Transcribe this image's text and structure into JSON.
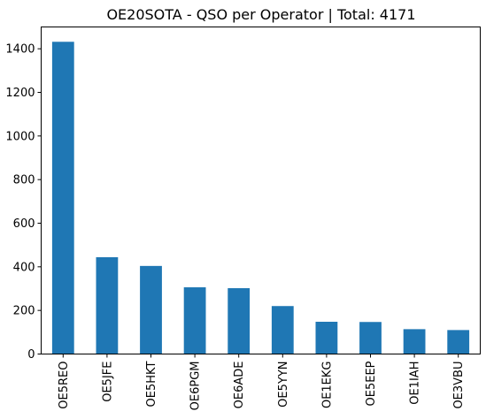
{
  "chart_data": {
    "type": "bar",
    "title": "OE20SOTA - QSO per Operator | Total: 4171",
    "xlabel": "",
    "ylabel": "",
    "categories": [
      "OE5REO",
      "OE5JFE",
      "OE5HKT",
      "OE6PGM",
      "OE6ADE",
      "OE5YYN",
      "OE1EKG",
      "OE5EEP",
      "OE1IAH",
      "OE3VBU"
    ],
    "values": [
      1432,
      444,
      404,
      306,
      302,
      220,
      148,
      147,
      114,
      110
    ],
    "ylim": [
      0,
      1500
    ],
    "yticks": [
      0,
      200,
      400,
      600,
      800,
      1000,
      1200,
      1400
    ],
    "bar_color": "#1f77b4",
    "grid": false,
    "legend": "none"
  }
}
